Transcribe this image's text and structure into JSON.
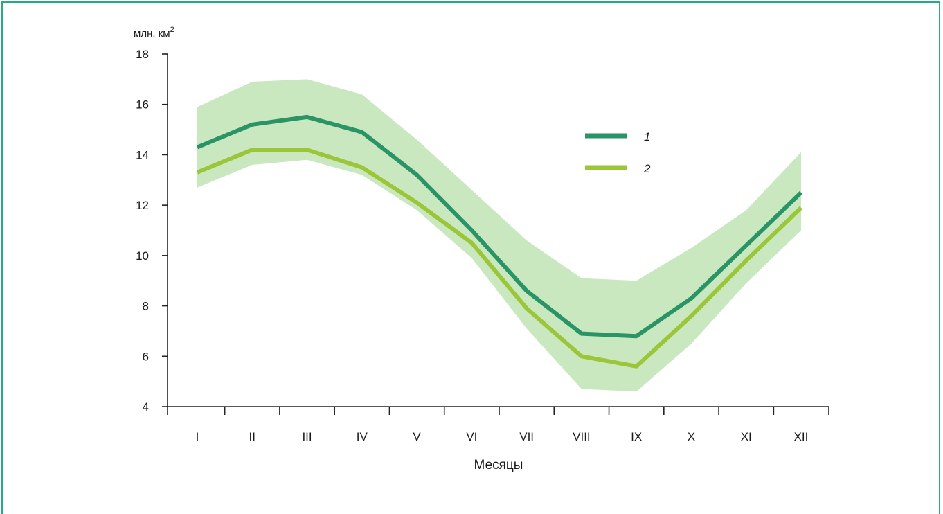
{
  "chart_data": {
    "type": "line",
    "ylabel": "млн. км",
    "ylabel_superscript": "2",
    "xlabel": "Месяцы",
    "categories": [
      "I",
      "II",
      "III",
      "IV",
      "V",
      "VI",
      "VII",
      "VIII",
      "IX",
      "X",
      "XI",
      "XII"
    ],
    "ylim": [
      4,
      18
    ],
    "yticks": [
      "4",
      "6",
      "8",
      "10",
      "12",
      "14",
      "16",
      "18"
    ],
    "ytick_values": [
      4,
      6,
      8,
      10,
      12,
      14,
      16,
      18
    ],
    "grid": false,
    "legend_position": "upper-right",
    "series": [
      {
        "name": "1",
        "color": "#2a9466",
        "values": [
          14.3,
          15.2,
          15.5,
          14.9,
          13.2,
          11.0,
          8.6,
          6.9,
          6.8,
          8.3,
          10.4,
          12.5
        ]
      },
      {
        "name": "2",
        "color": "#9cc63a",
        "values": [
          13.3,
          14.2,
          14.2,
          13.5,
          12.1,
          10.5,
          7.9,
          6.0,
          5.6,
          7.6,
          9.8,
          11.9
        ]
      }
    ],
    "band": {
      "color": "#c9e8c0",
      "upper": [
        15.9,
        16.9,
        17.0,
        16.4,
        14.6,
        12.6,
        10.6,
        9.1,
        9.0,
        10.3,
        11.8,
        14.1
      ],
      "lower": [
        12.7,
        13.6,
        13.8,
        13.2,
        11.8,
        9.9,
        7.1,
        4.7,
        4.6,
        6.5,
        8.9,
        11.0
      ]
    }
  }
}
